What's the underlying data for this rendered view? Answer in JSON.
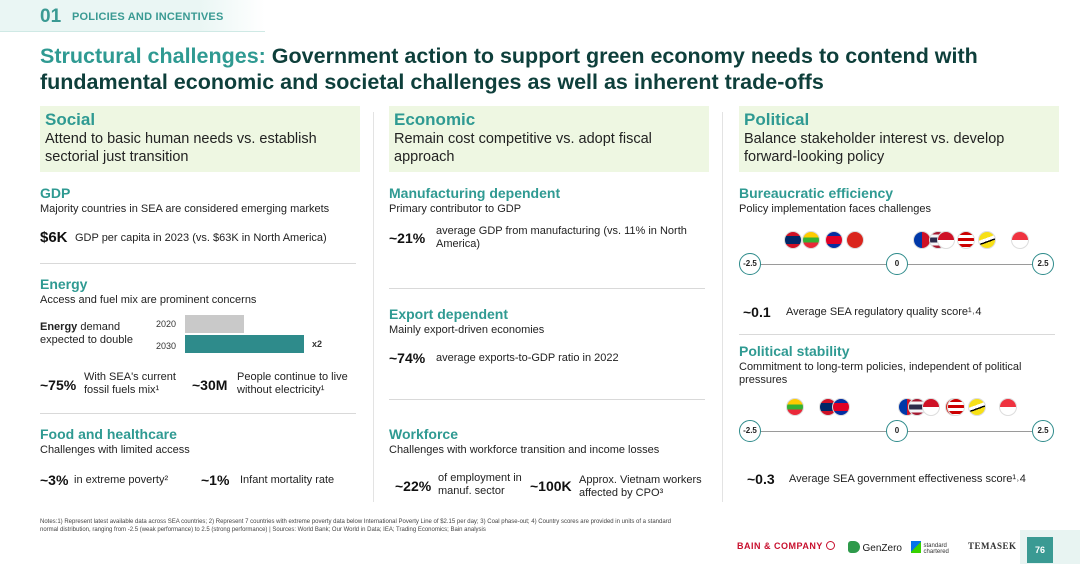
{
  "header": {
    "section_number": "01",
    "section_label": "POLICIES AND INCENTIVES"
  },
  "title": {
    "highlight": "Structural challenges:",
    "rest": " Government action to support green economy needs to contend with fundamental economic and societal challenges as well as inherent trade-offs"
  },
  "columns": {
    "social": {
      "title": "Social",
      "desc": "Attend to basic human needs vs. establish sectorial just transition",
      "gdp": {
        "title": "GDP",
        "sub": "Majority countries in SEA are considered emerging markets",
        "value": "$6K",
        "text": "GDP per capita in 2023  (vs. $63K in North America)"
      },
      "energy": {
        "title": "Energy",
        "sub": "Access and fuel mix are prominent concerns",
        "demand_bold": "Energy",
        "demand_text": " demand expected to double",
        "year1": "2020",
        "year2": "2030",
        "multiplier": "x2",
        "demand_2020": 1,
        "demand_2030": 2,
        "stat1_value": "~75%",
        "stat1_text": "With SEA's current fossil fuels mix¹",
        "stat2_value": "~30M",
        "stat2_text": "People continue to live without electricity¹"
      },
      "food": {
        "title": "Food and healthcare",
        "sub": "Challenges with limited access",
        "stat1_value": "~3%",
        "stat1_text": "in extreme poverty²",
        "stat2_value": "~1%",
        "stat2_text": "Infant mortality rate"
      }
    },
    "economic": {
      "title": "Economic",
      "desc": "Remain cost competitive vs. adopt fiscal approach",
      "manufacturing": {
        "title": "Manufacturing dependent",
        "sub": "Primary contributor to GDP",
        "value": "~21%",
        "text": "average GDP from manufacturing (vs. 11% in North America)"
      },
      "export": {
        "title": "Export dependent",
        "sub": "Mainly export-driven economies",
        "value": "~74%",
        "text": "average exports-to-GDP ratio in 2022"
      },
      "workforce": {
        "title": "Workforce",
        "sub": "Challenges with workforce transition and income losses",
        "stat1_value": "~22%",
        "stat1_text": "of employment in manuf. sector",
        "stat2_value": "~100K",
        "stat2_text": "Approx. Vietnam workers affected by CPO³"
      }
    },
    "political": {
      "title": "Political",
      "desc": "Balance stakeholder interest vs. develop forward-looking policy",
      "bureaucratic": {
        "title": "Bureaucratic efficiency",
        "sub": "Policy implementation faces challenges",
        "scale_min": "-2.5",
        "scale_mid": "0",
        "scale_max": "2.5",
        "value": "~0.1",
        "text": "Average SEA regulatory quality score¹˒4"
      },
      "stability": {
        "title": "Political stability",
        "sub": "Commitment to long-term policies, independent of political pressures",
        "scale_min": "-2.5",
        "scale_mid": "0",
        "scale_max": "2.5",
        "value": "~0.3",
        "text": "Average SEA government effectiveness score¹˒4"
      }
    }
  },
  "notes": "Notes:1) Represent latest available data across SEA countries; 2) Represent 7 countries with extreme poverty data below International Poverty Line of $2.15 per day; 3) Coal phase-out; 4) Country scores are provided in units of a standard normal distribution, ranging from -2.5 (weak performance) to 2.5 (strong performance) | Sources: World Bank; Our World in Data; IEA; Trading Economics; Bain analysis",
  "footer": {
    "bain": "BAIN & COMPANY",
    "genzero": "GenZero",
    "sc": "standard chartered",
    "temasek": "TEMASEK",
    "page": "76"
  }
}
